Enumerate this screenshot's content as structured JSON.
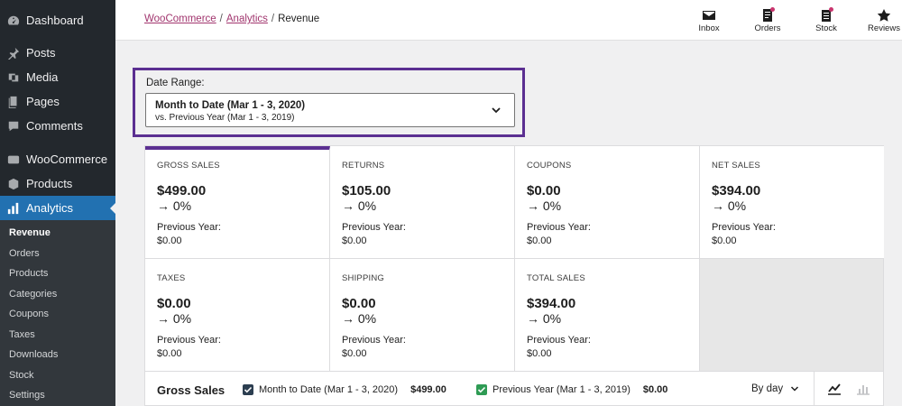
{
  "sidebar": {
    "items": [
      {
        "label": "Dashboard",
        "icon": "dashboard-icon"
      },
      {
        "label": "Posts",
        "icon": "pin-icon"
      },
      {
        "label": "Media",
        "icon": "media-icon"
      },
      {
        "label": "Pages",
        "icon": "pages-icon"
      },
      {
        "label": "Comments",
        "icon": "comment-icon"
      },
      {
        "label": "WooCommerce",
        "icon": "woo-icon"
      },
      {
        "label": "Products",
        "icon": "products-icon"
      },
      {
        "label": "Analytics",
        "icon": "bar-chart-icon"
      }
    ],
    "submenu": [
      "Revenue",
      "Orders",
      "Products",
      "Categories",
      "Coupons",
      "Taxes",
      "Downloads",
      "Stock",
      "Settings"
    ]
  },
  "header": {
    "breadcrumb": [
      "WooCommerce",
      "Analytics",
      "Revenue"
    ],
    "buttons": [
      {
        "label": "Inbox",
        "icon": "mail-icon"
      },
      {
        "label": "Orders",
        "icon": "orders-icon"
      },
      {
        "label": "Stock",
        "icon": "stock-icon"
      },
      {
        "label": "Reviews",
        "icon": "star-icon"
      }
    ]
  },
  "date_range": {
    "label": "Date Range:",
    "primary": "Month to Date (Mar 1 - 3, 2020)",
    "secondary": "vs. Previous Year (Mar 1 - 3, 2019)"
  },
  "summary": {
    "tiles": [
      {
        "label": "GROSS SALES",
        "value": "$499.00",
        "delta": "0%",
        "prev_label": "Previous Year:",
        "prev_value": "$0.00"
      },
      {
        "label": "RETURNS",
        "value": "$105.00",
        "delta": "0%",
        "prev_label": "Previous Year:",
        "prev_value": "$0.00"
      },
      {
        "label": "COUPONS",
        "value": "$0.00",
        "delta": "0%",
        "prev_label": "Previous Year:",
        "prev_value": "$0.00"
      },
      {
        "label": "NET SALES",
        "value": "$394.00",
        "delta": "0%",
        "prev_label": "Previous Year:",
        "prev_value": "$0.00"
      },
      {
        "label": "TAXES",
        "value": "$0.00",
        "delta": "0%",
        "prev_label": "Previous Year:",
        "prev_value": "$0.00"
      },
      {
        "label": "SHIPPING",
        "value": "$0.00",
        "delta": "0%",
        "prev_label": "Previous Year:",
        "prev_value": "$0.00"
      },
      {
        "label": "TOTAL SALES",
        "value": "$394.00",
        "delta": "0%",
        "prev_label": "Previous Year:",
        "prev_value": "$0.00"
      }
    ]
  },
  "chart": {
    "title": "Gross Sales",
    "legend": [
      {
        "label": "Month to Date (Mar 1 - 3, 2020)",
        "value": "$499.00",
        "color": "#2c3e50"
      },
      {
        "label": "Previous Year (Mar 1 - 3, 2019)",
        "value": "$0.00",
        "color": "#2e9b54"
      }
    ],
    "interval": "By day"
  },
  "colors": {
    "accent": "#5b2f91",
    "link": "#a1356e",
    "sidebar_bg": "#23282d",
    "active_menu": "#2271b1"
  }
}
